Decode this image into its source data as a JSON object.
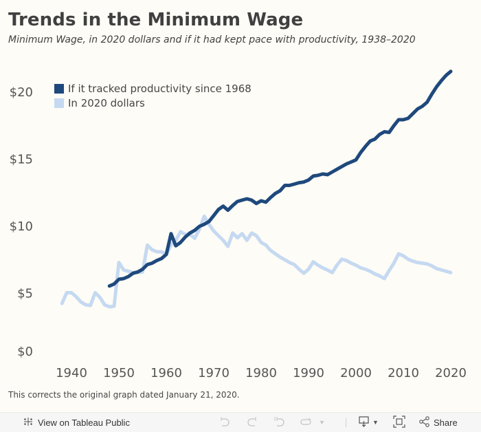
{
  "header": {
    "title": "Trends in the Minimum Wage",
    "subtitle": "Minimum Wage, in 2020 dollars and if it had kept pace with productivity, 1938–2020"
  },
  "footnote": "This corrects the original graph dated January 21, 2020.",
  "toolbar": {
    "view_label": "View on Tableau Public",
    "share_label": "Share",
    "icons": [
      "tableau-logo-icon",
      "undo-icon",
      "redo-icon",
      "revert-icon",
      "refresh-icon",
      "dropdown-icon",
      "download-icon",
      "fullscreen-icon",
      "share-icon"
    ]
  },
  "colors": {
    "productivity": "#1f497d",
    "dollars2020": "#c5d9f1",
    "background": "#fefcf6"
  },
  "chart_data": {
    "type": "line",
    "title": "Trends in the Minimum Wage",
    "subtitle": "Minimum Wage, in 2020 dollars and if it had kept pace with productivity, 1938–2020",
    "xlabel": "",
    "ylabel": "",
    "xlim": [
      1936,
      2023
    ],
    "ylim": [
      0,
      22
    ],
    "x_ticks": [
      1940,
      1950,
      1960,
      1970,
      1980,
      1990,
      2000,
      2010,
      2020
    ],
    "x_tick_labels": [
      "1940",
      "1950",
      "1960",
      "1970",
      "1980",
      "1990",
      "2000",
      "2010",
      "2020"
    ],
    "y_ticks": [
      0,
      5,
      10,
      15,
      20
    ],
    "y_tick_labels": [
      "$0",
      "$5",
      "$10",
      "$15",
      "$20"
    ],
    "grid": false,
    "legend_position": "top-left",
    "series": [
      {
        "name": "If it tracked productivity since 1968",
        "color": "#1f497d",
        "x": [
          1948,
          1949,
          1950,
          1951,
          1952,
          1953,
          1954,
          1955,
          1956,
          1957,
          1958,
          1959,
          1960,
          1961,
          1962,
          1963,
          1964,
          1965,
          1966,
          1967,
          1968,
          1969,
          1970,
          1971,
          1972,
          1973,
          1974,
          1975,
          1976,
          1977,
          1978,
          1979,
          1980,
          1981,
          1982,
          1983,
          1984,
          1985,
          1986,
          1987,
          1988,
          1989,
          1990,
          1991,
          1992,
          1993,
          1994,
          1995,
          1996,
          1997,
          1998,
          1999,
          2000,
          2001,
          2002,
          2003,
          2004,
          2005,
          2006,
          2007,
          2008,
          2009,
          2010,
          2011,
          2012,
          2013,
          2014,
          2015,
          2016,
          2017,
          2018,
          2019,
          2020
        ],
        "values": [
          5.5,
          5.65,
          6.0,
          6.05,
          6.2,
          6.45,
          6.55,
          6.75,
          7.1,
          7.2,
          7.4,
          7.55,
          7.85,
          9.4,
          8.5,
          8.75,
          9.15,
          9.45,
          9.65,
          9.95,
          10.1,
          10.3,
          10.75,
          11.2,
          11.45,
          11.15,
          11.5,
          11.8,
          11.9,
          12.0,
          11.9,
          11.65,
          11.85,
          11.75,
          12.1,
          12.4,
          12.6,
          13.0,
          13.0,
          13.1,
          13.2,
          13.25,
          13.4,
          13.7,
          13.75,
          13.85,
          13.8,
          14.0,
          14.2,
          14.4,
          14.6,
          14.75,
          14.9,
          15.45,
          15.9,
          16.3,
          16.45,
          16.8,
          17.0,
          16.95,
          17.45,
          17.9,
          17.9,
          18.0,
          18.35,
          18.7,
          18.9,
          19.2,
          19.8,
          20.35,
          20.8,
          21.2,
          21.5
        ]
      },
      {
        "name": "In 2020 dollars",
        "color": "#c5d9f1",
        "x": [
          1938,
          1939,
          1940,
          1941,
          1942,
          1943,
          1944,
          1945,
          1946,
          1947,
          1948,
          1949,
          1950,
          1951,
          1952,
          1953,
          1954,
          1955,
          1956,
          1957,
          1958,
          1959,
          1960,
          1961,
          1962,
          1963,
          1964,
          1965,
          1966,
          1967,
          1968,
          1969,
          1970,
          1971,
          1972,
          1973,
          1974,
          1975,
          1976,
          1977,
          1978,
          1979,
          1980,
          1981,
          1982,
          1983,
          1984,
          1985,
          1986,
          1987,
          1988,
          1989,
          1990,
          1991,
          1992,
          1993,
          1994,
          1995,
          1996,
          1997,
          1998,
          1999,
          2000,
          2001,
          2002,
          2003,
          2004,
          2005,
          2006,
          2007,
          2008,
          2009,
          2010,
          2011,
          2012,
          2013,
          2014,
          2015,
          2016,
          2017,
          2018,
          2019,
          2020
        ],
        "values": [
          4.2,
          5.0,
          5.0,
          4.7,
          4.3,
          4.1,
          4.05,
          5.0,
          4.65,
          4.1,
          3.95,
          4.0,
          7.25,
          6.7,
          6.6,
          6.5,
          6.5,
          6.55,
          8.55,
          8.2,
          8.05,
          8.05,
          7.85,
          8.55,
          8.9,
          9.55,
          9.35,
          9.35,
          9.05,
          9.75,
          10.7,
          10.1,
          9.6,
          9.25,
          8.9,
          8.45,
          9.45,
          9.1,
          9.4,
          8.9,
          9.45,
          9.25,
          8.75,
          8.55,
          8.15,
          7.9,
          7.65,
          7.45,
          7.25,
          7.1,
          6.75,
          6.45,
          6.75,
          7.3,
          7.05,
          6.85,
          6.7,
          6.5,
          7.05,
          7.5,
          7.4,
          7.2,
          7.05,
          6.85,
          6.75,
          6.6,
          6.4,
          6.25,
          6.05,
          6.65,
          7.2,
          7.9,
          7.75,
          7.5,
          7.35,
          7.25,
          7.2,
          7.15,
          7.0,
          6.8,
          6.7,
          6.6,
          6.5
        ]
      }
    ]
  }
}
